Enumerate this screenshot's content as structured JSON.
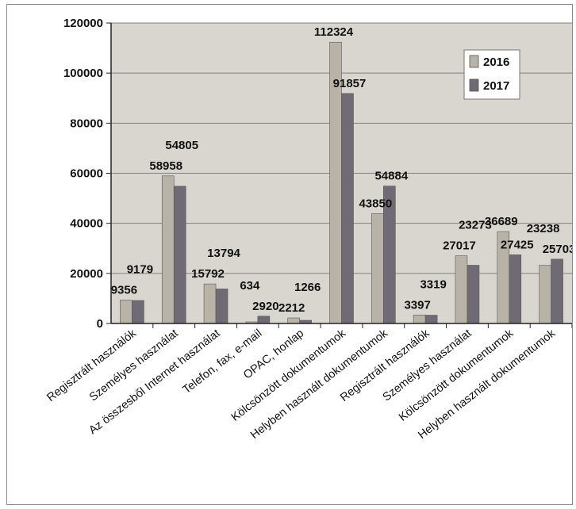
{
  "chart_data": {
    "type": "bar",
    "categories": [
      "Regisztrált használók",
      "Személyes használat",
      "Az összesből Internet használat",
      "Telefon, fax, e-mail",
      "OPAC, honlap",
      "Kölcsönzött dokumentumok",
      "Helyben használt dokumentumok",
      "Regisztrált használók",
      "Személyes használat",
      "Kölcsönzött dokumentumok",
      "Helyben használt dokumentumok"
    ],
    "series": [
      {
        "name": "2016",
        "values": [
          9356,
          58958,
          15792,
          634,
          2212,
          112324,
          43850,
          3397,
          27017,
          36689,
          23238
        ],
        "color": "#b9b2a6"
      },
      {
        "name": "2017",
        "values": [
          9179,
          54805,
          13794,
          2920,
          1266,
          91857,
          54884,
          3319,
          23273,
          27425,
          25703
        ],
        "color": "#6f6a74"
      }
    ],
    "data_labels": {
      "2016": [
        "9356",
        "58958",
        "15792",
        "634",
        "2212",
        "112324",
        "43850",
        "3397",
        "27017",
        "36689",
        "23238"
      ],
      "2017": [
        "9179",
        "54805",
        "13794",
        "2920",
        "1266",
        "91857",
        "54884",
        "3319",
        "23273",
        "27425",
        "25703"
      ]
    },
    "y_ticks": [
      "0",
      "20000",
      "40000",
      "60000",
      "80000",
      "100000",
      "120000"
    ],
    "ylim": [
      0,
      120000
    ],
    "grid": true,
    "legend_position": "top-right",
    "plot_background": "#d9d6cf",
    "grid_color": "#808080",
    "text_color": "#111111"
  }
}
